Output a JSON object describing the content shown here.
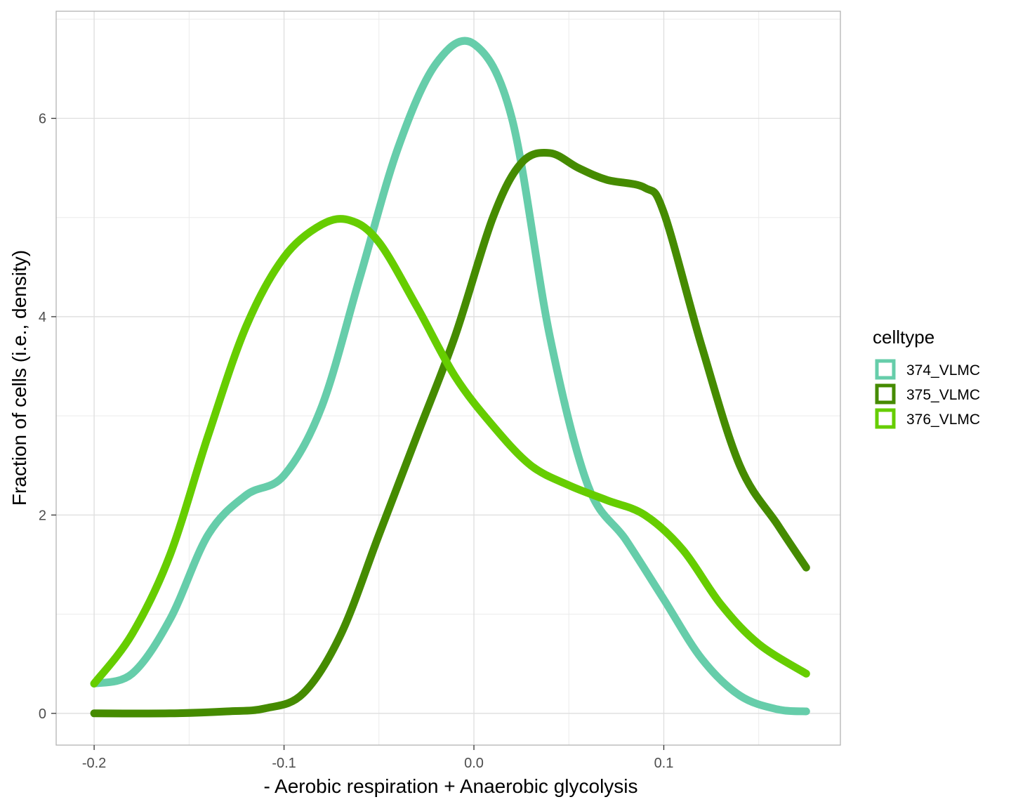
{
  "chart_data": {
    "type": "line",
    "xlabel": "- Aerobic respiration + Anaerobic glycolysis",
    "ylabel": "Fraction of cells (i.e., density)",
    "xlim": [
      -0.22,
      0.193
    ],
    "ylim": [
      -0.32,
      7.08
    ],
    "x_ticks": [
      -0.2,
      -0.1,
      0.0,
      0.1
    ],
    "x_tick_labels": [
      "-0.2",
      "-0.1",
      "0.0",
      "0.1"
    ],
    "y_ticks": [
      0,
      2,
      4,
      6
    ],
    "y_tick_labels": [
      "0",
      "2",
      "4",
      "6"
    ],
    "grid": true,
    "legend": {
      "title": "celltype",
      "position": "right"
    },
    "series": [
      {
        "name": "374_VLMC",
        "color": "#66CDAA",
        "x": [
          -0.2,
          -0.18,
          -0.16,
          -0.14,
          -0.12,
          -0.1,
          -0.08,
          -0.06,
          -0.04,
          -0.02,
          0.0,
          0.02,
          0.04,
          0.06,
          0.08,
          0.1,
          0.12,
          0.14,
          0.16,
          0.175
        ],
        "y": [
          0.3,
          0.4,
          0.95,
          1.8,
          2.2,
          2.4,
          3.1,
          4.4,
          5.7,
          6.55,
          6.75,
          6.0,
          3.8,
          2.3,
          1.75,
          1.15,
          0.55,
          0.18,
          0.04,
          0.02
        ]
      },
      {
        "name": "375_VLMC",
        "color": "#458B00",
        "x": [
          -0.2,
          -0.16,
          -0.13,
          -0.11,
          -0.09,
          -0.07,
          -0.05,
          -0.03,
          -0.01,
          0.01,
          0.025,
          0.04,
          0.055,
          0.07,
          0.09,
          0.1,
          0.12,
          0.14,
          0.16,
          0.175
        ],
        "y": [
          0.0,
          0.0,
          0.02,
          0.05,
          0.2,
          0.8,
          1.8,
          2.8,
          3.8,
          5.0,
          5.55,
          5.65,
          5.5,
          5.38,
          5.3,
          5.05,
          3.7,
          2.5,
          1.9,
          1.47
        ]
      },
      {
        "name": "376_VLMC",
        "color": "#66CD00",
        "x": [
          -0.2,
          -0.18,
          -0.16,
          -0.14,
          -0.12,
          -0.1,
          -0.08,
          -0.065,
          -0.05,
          -0.03,
          -0.01,
          0.01,
          0.03,
          0.05,
          0.07,
          0.09,
          0.11,
          0.13,
          0.15,
          0.175
        ],
        "y": [
          0.3,
          0.8,
          1.6,
          2.8,
          3.9,
          4.6,
          4.93,
          4.97,
          4.75,
          4.1,
          3.4,
          2.9,
          2.5,
          2.3,
          2.15,
          2.0,
          1.65,
          1.1,
          0.7,
          0.4
        ]
      }
    ]
  }
}
